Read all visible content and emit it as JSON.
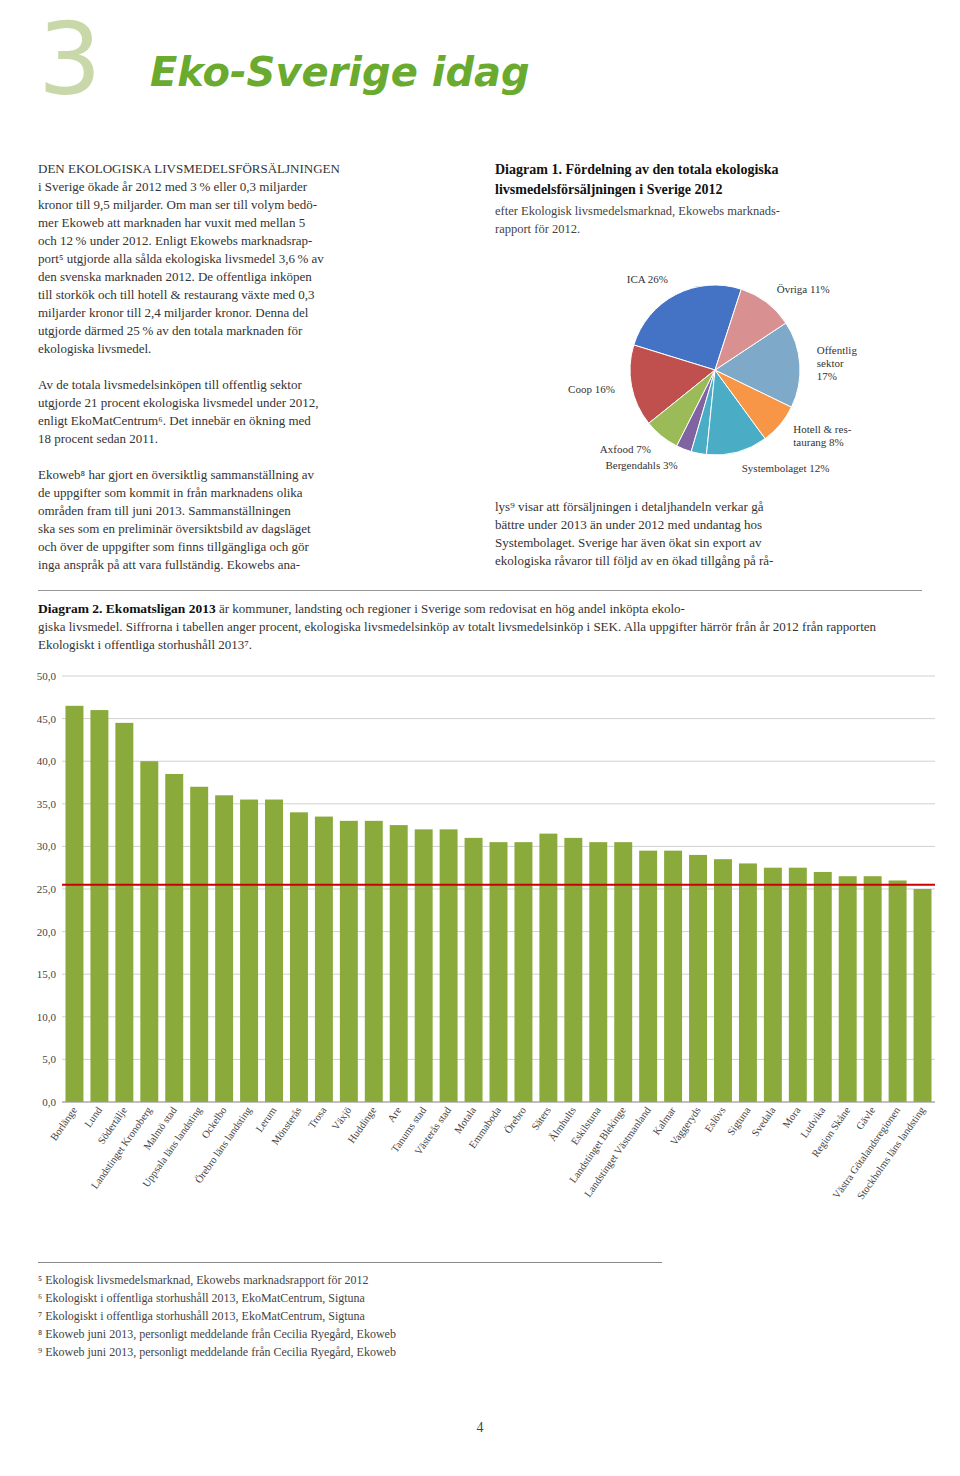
{
  "page": {
    "background_color": "#ffffff",
    "header_number": "3",
    "header_number_color": "#c8d8a8",
    "title": "Eko-Sverige idag",
    "title_color": "#6aaa2e",
    "body": [
      [
        "DEN EKOLOGISKA LIVSMEDELSFÖRSÄLJNINGEN",
        "i Sverige ökade år 2012 med 3 % eller 0,3 miljarder",
        "kronor till 9,5 miljarder. Om man ser till volym bedö-",
        "mer Ekoweb att marknaden har vuxit med mellan 5",
        "och 12 % under 2012. Enligt Ekowebs marknadsrap-",
        "port⁵ utgjorde alla sålda ekologiska livsmedel 3,6 % av",
        "den svenska marknaden 2012. De offentliga inköpen",
        "till storkök och till hotell & restaurang växte med 0,3",
        "miljarder kronor till 2,4 miljarder kronor. Denna del",
        "utgjorde därmed 25 % av den totala marknaden för",
        "ekologiska livsmedel."
      ],
      [
        "Av de totala livsmedelsinköpen till offentlig sektor",
        "utgjorde 21 procent ekologiska livsmedel under 2012,",
        "enligt EkoMatCentrum⁶. Det innebär en ökning med",
        "18 procent sedan 2011."
      ],
      [
        "Ekoweb⁸ har gjort en översiktlig sammanställning av",
        "de uppgifter som kommit in från marknadens olika",
        "områden fram till juni 2013. Sammanställningen",
        "ska ses som en preliminär översiktsbild av dagsläget",
        "och över de uppgifter som finns tillgängliga och gör",
        "inga anspråk på att vara fullständig. Ekowebs ana-"
      ]
    ],
    "right_column": [
      "lys⁹ visar att försäljningen i detaljhandeln verkar gå",
      "bättre under 2013 än under 2012 med undantag hos",
      "Systembolaget. Sverige har även ökat sin export av",
      "ekologiska råvaror till följd av en ökad tillgång på rå-"
    ],
    "footnotes": [
      "⁵ Ekologisk livsmedelsmarknad, Ekowebs marknadsrapport för 2012",
      "⁶ Ekologiskt i offentliga storhushåll 2013, EkoMatCentrum, Sigtuna",
      "⁷ Ekologiskt i offentliga storhushåll 2013, EkoMatCentrum, Sigtuna",
      "⁸ Ekoweb juni 2013, personligt meddelande från Cecilia Ryegård, Ekoweb",
      "⁹ Ekoweb juni 2013, personligt meddelande från Cecilia Ryegård, Ekoweb"
    ],
    "page_number": "4"
  },
  "chart_data": [
    {
      "type": "pie",
      "title": "Diagram 1. Fördelning av den totala ekologiska\nlivsmedelsförsäljningen i Sverige 2012",
      "subtitle": "efter Ekologisk livsmedelsmarknad, Ekowebs marknads-\nrapport för 2012.",
      "categories": [
        "ICA 26%",
        "Coop 16%",
        "Axfood 7%",
        "Bergendahls 3%",
        null,
        "Systembolaget 12%",
        "Hotell & res-\ntaurang 8%",
        "Offentlig\nsektor\n17%",
        "Övriga 11%"
      ],
      "values": [
        26,
        16,
        7,
        3,
        3,
        12,
        8,
        17,
        11
      ],
      "colors": [
        "#4472c4",
        "#c0504d",
        "#9bbb59",
        "#8064a2",
        "#4bacc6",
        "#4bacc6",
        "#f79646",
        "#7fa9c8",
        "#d89090"
      ]
    },
    {
      "type": "bar",
      "title": "Diagram 2. Ekomatsligan 2013",
      "subtitle": [
        "är kommuner, landsting och regioner i Sverige som redovisat en hög andel inköpta ekolo-",
        "giska livsmedel. Siffrorna i tabellen anger procent, ekologiska livsmedelsinköp av totalt livsmedelsinköp i SEK. Alla uppgifter härrör från år 2012 från rapporten Ekologiskt i offentliga storhushåll 2013⁷."
      ],
      "categories": [
        "Borlänge",
        "Lund",
        "Södertälje",
        "Landstinget Kronoberg",
        "Malmö stad",
        "Uppsala läns landsting",
        "Ockelbo",
        "Örebro läns landsting",
        "Lerum",
        "Mönsterås",
        "Trosa",
        "Växjö",
        "Huddinge",
        "Are",
        "Tanums stad",
        "Västerås stad",
        "Motala",
        "Emmaboda",
        "Örebro",
        "Säters",
        "Älmhults",
        "Eskilstuna",
        "Landstinget Blekinge",
        "Landstinget Västmanland",
        "Kalmar",
        "Vaggeryds",
        "Eslövs",
        "Sigtuna",
        "Svedala",
        "Mora",
        "Ludvika",
        "Region Skåne",
        "Gävle",
        "Västra Götalandsregionen",
        "Stockholms läns landsting"
      ],
      "values": [
        46.5,
        46.0,
        44.5,
        40.0,
        38.5,
        37.0,
        36.0,
        35.5,
        35.5,
        34.0,
        33.5,
        33.0,
        33.0,
        32.5,
        32.0,
        32.0,
        31.0,
        30.5,
        30.5,
        31.5,
        31.0,
        30.5,
        30.5,
        29.5,
        29.5,
        29.0,
        28.5,
        28.0,
        27.5,
        27.5,
        27.0,
        26.5,
        26.5,
        26.0,
        25.0
      ],
      "color": "#8aab3c",
      "reference_line": {
        "value": 25.5,
        "color": "#cc0000"
      },
      "ylim": [
        0,
        50
      ],
      "yticks": [
        {
          "value": 0.0,
          "label": "0,0"
        },
        {
          "value": 5.0,
          "label": "5,0"
        },
        {
          "value": 10.0,
          "label": "10,0"
        },
        {
          "value": 15.0,
          "label": "15,0"
        },
        {
          "value": 20.0,
          "label": "20,0"
        },
        {
          "value": 25.0,
          "label": "25,0"
        },
        {
          "value": 30.0,
          "label": "30,0"
        },
        {
          "value": 35.0,
          "label": "35,0"
        },
        {
          "value": 40.0,
          "label": "40,0"
        },
        {
          "value": 45.0,
          "label": "45,0"
        },
        {
          "value": 50.0,
          "label": "50,0"
        }
      ],
      "grid": true
    }
  ]
}
